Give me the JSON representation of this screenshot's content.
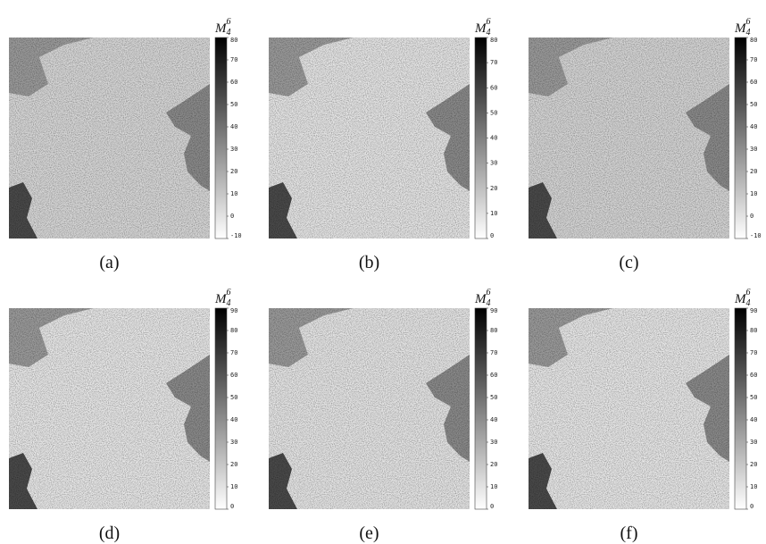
{
  "panels": [
    {
      "label": "(a)",
      "colorbar": {
        "symbol": "M",
        "subscript": "4",
        "superscript": "6",
        "ticks": [
          80,
          70,
          60,
          50,
          40,
          30,
          20,
          10,
          0,
          -10
        ]
      }
    },
    {
      "label": "(b)",
      "colorbar": {
        "symbol": "M",
        "subscript": "4",
        "superscript": "6",
        "ticks": [
          80,
          70,
          60,
          50,
          40,
          30,
          20,
          10,
          0
        ]
      }
    },
    {
      "label": "(c)",
      "colorbar": {
        "symbol": "M",
        "subscript": "4",
        "superscript": "6",
        "ticks": [
          80,
          70,
          60,
          50,
          40,
          30,
          20,
          10,
          0,
          -10
        ]
      }
    },
    {
      "label": "(d)",
      "colorbar": {
        "symbol": "M",
        "subscript": "4",
        "superscript": "6",
        "ticks": [
          90,
          80,
          70,
          60,
          50,
          40,
          30,
          20,
          10,
          0
        ]
      }
    },
    {
      "label": "(e)",
      "colorbar": {
        "symbol": "M",
        "subscript": "4",
        "superscript": "6",
        "ticks": [
          90,
          80,
          70,
          60,
          50,
          40,
          30,
          20,
          10,
          0
        ]
      }
    },
    {
      "label": "(f)",
      "colorbar": {
        "symbol": "M",
        "subscript": "4",
        "superscript": "6",
        "ticks": [
          90,
          80,
          70,
          60,
          50,
          40,
          30,
          20,
          10,
          0
        ]
      }
    }
  ]
}
